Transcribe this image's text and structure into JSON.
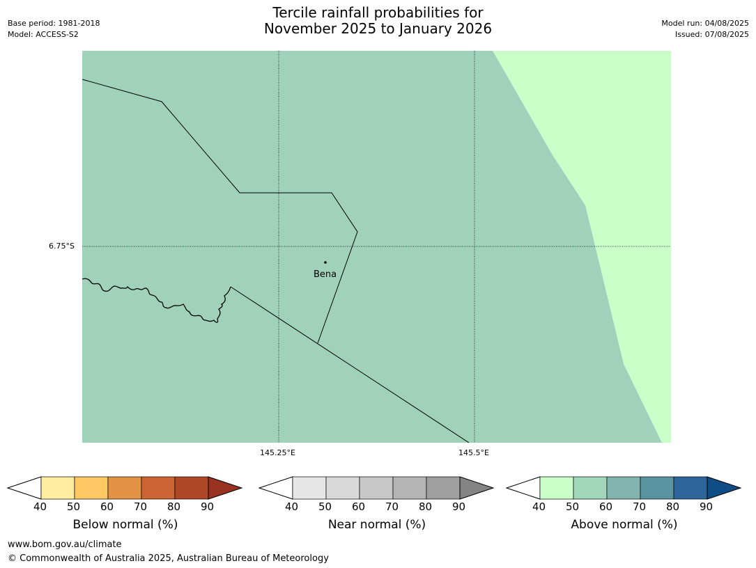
{
  "header": {
    "title_line1": "Tercile rainfall probabilities for",
    "title_line2": "November 2025 to January 2026",
    "base_period": "Base period: 1981-2018",
    "model": "Model: ACCESS-S2",
    "model_run": "Model run: 04/08/2025",
    "issued": "Issued: 07/08/2025"
  },
  "map": {
    "latitude_label": "6.75°S",
    "longitude_labels": [
      "145.25°E",
      "145.5°E"
    ],
    "place": "Bena",
    "fill_colors": {
      "above_50_60": "#9fd1bb",
      "above_40_50": "#caffca"
    }
  },
  "legends": [
    {
      "name": "below",
      "label": "Below normal (%)",
      "ticks": [
        "40",
        "50",
        "60",
        "70",
        "80",
        "90"
      ],
      "colors": [
        "#ffeda0",
        "#fec965",
        "#e29346",
        "#cc6533",
        "#b04827",
        "#983321"
      ]
    },
    {
      "name": "near",
      "label": "Near normal (%)",
      "ticks": [
        "40",
        "50",
        "60",
        "70",
        "80",
        "90"
      ],
      "colors": [
        "#e6e6e6",
        "#d9d9d9",
        "#c8c8c8",
        "#b4b4b4",
        "#9f9f9f",
        "#848484"
      ]
    },
    {
      "name": "above",
      "label": "Above normal (%)",
      "ticks": [
        "40",
        "50",
        "60",
        "70",
        "80",
        "90"
      ],
      "colors": [
        "#caffca",
        "#a2d7bb",
        "#82b4ad",
        "#5a93a0",
        "#2f6699",
        "#104c85"
      ]
    }
  ],
  "footer": {
    "url": "www.bom.gov.au/climate",
    "copyright": "© Commonwealth of Australia 2025, Australian Bureau of Meteorology"
  }
}
